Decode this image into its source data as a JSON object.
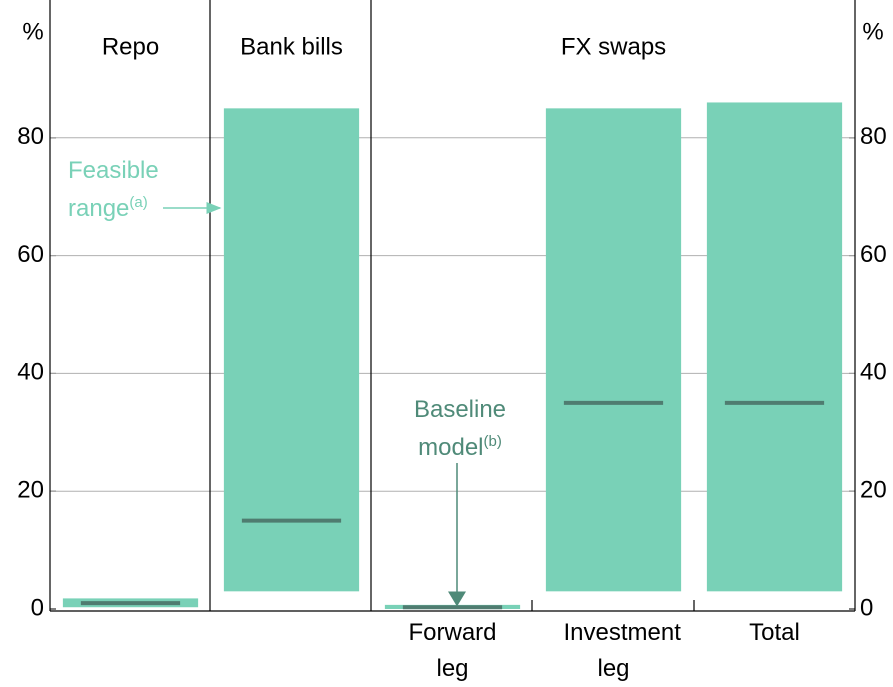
{
  "chart_data": {
    "type": "range_bar",
    "y_label": "%",
    "panels": [
      "Repo",
      "Bank bills",
      "FX swaps"
    ],
    "categories": [
      null,
      null,
      "Forward leg",
      "Investment leg",
      "Total"
    ],
    "low": [
      0.3,
      3,
      0,
      3,
      3
    ],
    "high": [
      1.8,
      85,
      0.7,
      85,
      86
    ],
    "baseline": [
      1,
      15,
      0.3,
      35,
      35
    ],
    "color": "#79d1b7",
    "baseline_color": "#4f7c70",
    "ylim": [
      0,
      100
    ],
    "yticks": [
      0,
      20,
      40,
      60,
      80
    ],
    "grid": true,
    "annotations": [
      {
        "text": "Feasible range",
        "note": "(a)",
        "color": "#79d1b7"
      },
      {
        "text": "Baseline model",
        "note": "(b)",
        "color": "#4f8a78"
      }
    ]
  }
}
